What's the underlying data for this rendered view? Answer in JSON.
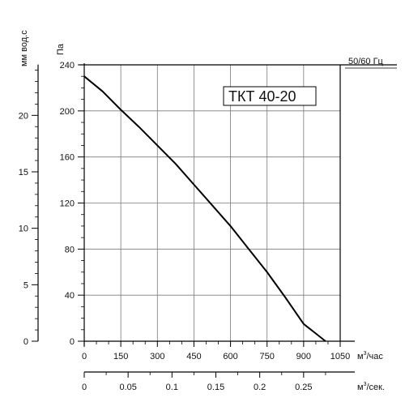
{
  "chart_data": {
    "type": "line",
    "model_label": "ТКТ 40-20",
    "freq_label": "50/60 Гц",
    "left_axis": {
      "unit": "мм вод.с",
      "ticks": [
        0,
        5,
        10,
        15,
        20
      ],
      "tick_labels": [
        "0",
        "5",
        "10",
        "15",
        "20"
      ]
    },
    "y": {
      "unit": "Па",
      "ylim": [
        0,
        240
      ],
      "ticks": [
        0,
        40,
        80,
        120,
        160,
        200,
        240
      ],
      "tick_labels": [
        "0",
        "40",
        "80",
        "120",
        "160",
        "200",
        "240"
      ]
    },
    "x": {
      "unit_main": "м",
      "unit_sup": "3",
      "unit_tail": "/час",
      "xlim": [
        0,
        1050
      ],
      "ticks": [
        0,
        150,
        300,
        450,
        600,
        750,
        900,
        1050
      ],
      "tick_labels": [
        "0",
        "150",
        "300",
        "450",
        "600",
        "750",
        "900",
        "1050"
      ]
    },
    "x2": {
      "unit_main": "м",
      "unit_sup": "3",
      "unit_tail": "/сек.",
      "xlim": [
        0,
        0.2917
      ],
      "ticks": [
        0,
        0.05,
        0.1,
        0.15,
        0.2,
        0.25
      ],
      "tick_labels": [
        "0",
        "0.05",
        "0.1",
        "0.15",
        "0.2",
        "0.25"
      ]
    },
    "grid": true,
    "series": [
      {
        "color": "#000000",
        "points": [
          [
            0,
            230
          ],
          [
            75,
            217
          ],
          [
            150,
            201
          ],
          [
            225,
            186
          ],
          [
            300,
            170
          ],
          [
            375,
            154
          ],
          [
            450,
            136
          ],
          [
            525,
            118
          ],
          [
            600,
            100
          ],
          [
            675,
            80
          ],
          [
            750,
            60
          ],
          [
            825,
            38
          ],
          [
            900,
            15
          ],
          [
            990,
            0
          ]
        ]
      }
    ]
  }
}
